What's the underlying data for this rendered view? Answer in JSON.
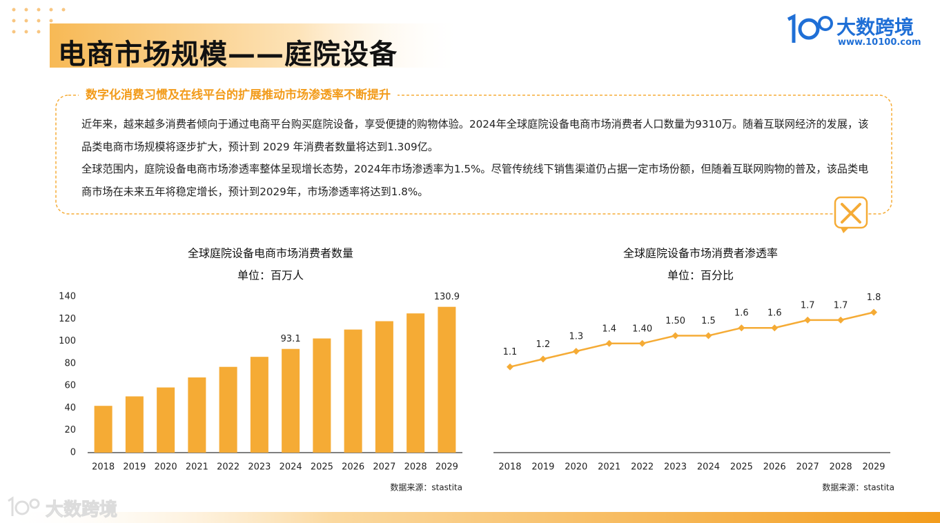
{
  "header": {
    "title": "电商市场规模——庭院设备",
    "logo_name": "大数跨境",
    "logo_url": "www.10100.com"
  },
  "summary": {
    "heading": "数字化消费习惯及在线平台的扩展推动市场渗透率不断提升",
    "paragraphs": [
      "近年来，越来越多消费者倾向于通过电商平台购买庭院设备，享受便捷的购物体验。2024年全球庭院设备电商市场消费者人口数量为9310万。随着互联网经济的发展，该品类电商市场规模将逐步扩大，预计到 2029 年消费者数量将达到1.309亿。",
      "全球范围内，庭院设备电商市场渗透率整体呈现增长态势，2024年市场渗透率为1.5%。尽管传统线下销售渠道仍占据一定市场份额，但随着互联网购物的普及，该品类电商市场在未来五年将稳定增长，预计到2029年，市场渗透率将达到1.8%。"
    ]
  },
  "chart_data": [
    {
      "type": "bar",
      "title": "全球庭院设备电商市场消费者数量",
      "subtitle": "单位：百万人",
      "categories": [
        "2018",
        "2019",
        "2020",
        "2021",
        "2022",
        "2023",
        "2024",
        "2025",
        "2026",
        "2027",
        "2028",
        "2029"
      ],
      "values": [
        42,
        50.5,
        58.5,
        67.5,
        77,
        86,
        93.1,
        102.5,
        110.5,
        118,
        125,
        130.9
      ],
      "value_labels": [
        null,
        null,
        null,
        null,
        null,
        null,
        "93.1",
        null,
        null,
        null,
        null,
        "130.9"
      ],
      "color": "#f5ab35",
      "ylim": [
        0,
        140
      ],
      "yticks": [
        0,
        20,
        40,
        60,
        80,
        100,
        120,
        140
      ],
      "source": "数据来源：stastita"
    },
    {
      "type": "line",
      "title": "全球庭院设备市场消费者渗透率",
      "subtitle": "单位：百分比",
      "categories": [
        "2018",
        "2019",
        "2020",
        "2021",
        "2022",
        "2023",
        "2024",
        "2025",
        "2026",
        "2027",
        "2028",
        "2029"
      ],
      "values": [
        1.1,
        1.2,
        1.3,
        1.4,
        1.4,
        1.5,
        1.5,
        1.6,
        1.6,
        1.7,
        1.7,
        1.8
      ],
      "value_labels": [
        "1.1",
        "1.2",
        "1.3",
        "1.4",
        "1.40",
        "1.50",
        "1.5",
        "1.6",
        "1.6",
        "1.7",
        "1.7",
        "1.8"
      ],
      "color": "#f5ab35",
      "ylim": [
        0,
        2
      ],
      "source": "数据来源：stastita"
    }
  ],
  "watermark": "大数跨境"
}
